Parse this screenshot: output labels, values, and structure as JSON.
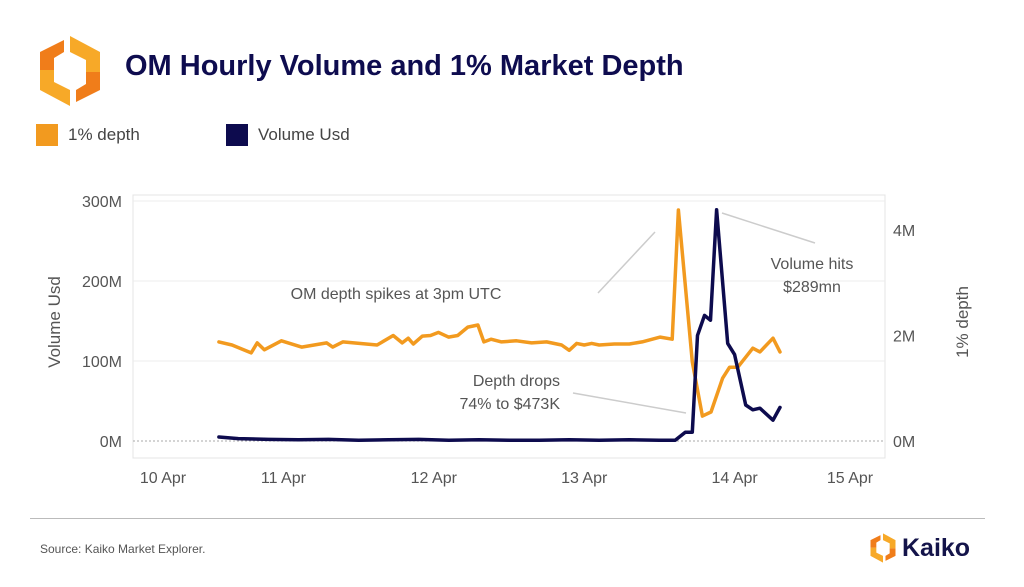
{
  "header": {
    "title": "OM Hourly Volume and 1% Market Depth"
  },
  "footer": {
    "source": "Source: Kaiko Market Explorer.",
    "brand": "Kaiko"
  },
  "colors": {
    "depth": "#f29a1f",
    "volume": "#0d0b4e",
    "title": "#0e0c4f",
    "logo_orange": "#f7a928",
    "logo_dark_orange": "#f07d1a"
  },
  "chart_data": {
    "type": "line",
    "title": "OM Hourly Volume and 1% Market Depth",
    "legend_position": "top-left",
    "grid": true,
    "x_axis": {
      "type": "date",
      "ticks": [
        "10 Apr",
        "11 Apr",
        "12 Apr",
        "13 Apr",
        "14 Apr",
        "15 Apr"
      ],
      "range_days_of_april": [
        10,
        15
      ]
    },
    "y_left": {
      "label": "Volume Usd",
      "ticks": [
        "0M",
        "100M",
        "200M",
        "300M"
      ],
      "tick_values": [
        0,
        100,
        200,
        300
      ],
      "range": [
        0,
        300
      ],
      "unit": "M USD"
    },
    "y_right": {
      "label": "1% depth",
      "ticks": [
        "0M",
        "2M",
        "4M"
      ],
      "tick_values": [
        0,
        2,
        4
      ],
      "range": [
        0,
        4.57
      ],
      "unit": "M USD"
    },
    "series": [
      {
        "name": "1% depth",
        "axis": "right",
        "color": "#f29a1f",
        "x": [
          10.571,
          10.658,
          10.786,
          10.826,
          10.873,
          10.987,
          11.121,
          11.288,
          11.328,
          11.395,
          11.623,
          11.73,
          11.79,
          11.83,
          11.864,
          11.924,
          11.978,
          12.031,
          12.098,
          12.159,
          12.226,
          12.293,
          12.333,
          12.38,
          12.45,
          12.55,
          12.65,
          12.75,
          12.85,
          12.9,
          12.95,
          13.0,
          13.05,
          13.1,
          13.2,
          13.3,
          13.385,
          13.505,
          13.585,
          13.626,
          13.719,
          13.786,
          13.843,
          13.92,
          13.967,
          14.021,
          14.121,
          14.168,
          14.255,
          14.302
        ],
        "y": [
          1.88,
          1.82,
          1.67,
          1.86,
          1.73,
          1.9,
          1.78,
          1.86,
          1.78,
          1.88,
          1.82,
          2.0,
          1.86,
          1.95,
          1.84,
          1.99,
          2.0,
          2.06,
          1.97,
          2.0,
          2.16,
          2.2,
          1.88,
          1.93,
          1.88,
          1.9,
          1.86,
          1.88,
          1.82,
          1.72,
          1.85,
          1.82,
          1.85,
          1.82,
          1.84,
          1.84,
          1.88,
          1.97,
          1.93,
          4.38,
          1.5,
          0.473,
          0.55,
          1.19,
          1.4,
          1.4,
          1.76,
          1.69,
          1.95,
          1.69
        ]
      },
      {
        "name": "Volume Usd",
        "axis": "left",
        "color": "#0d0b4e",
        "x": [
          10.571,
          10.7,
          10.9,
          11.1,
          11.3,
          11.5,
          11.7,
          11.9,
          12.1,
          12.3,
          12.5,
          12.7,
          12.9,
          13.1,
          13.3,
          13.5,
          13.605,
          13.672,
          13.719,
          13.753,
          13.8,
          13.84,
          13.88,
          13.954,
          14.0,
          14.074,
          14.121,
          14.168,
          14.255,
          14.302
        ],
        "y": [
          5,
          3,
          2,
          1.5,
          2,
          1,
          1.5,
          2,
          1,
          1.5,
          1,
          1,
          1.5,
          1,
          1.5,
          1,
          1,
          11,
          11,
          132,
          157,
          151,
          289,
          122,
          108,
          45,
          39,
          41,
          26,
          42
        ]
      }
    ],
    "annotations": [
      {
        "text": "OM depth spikes at 3pm UTC"
      },
      {
        "text_lines": [
          "Volume hits",
          "$289mn"
        ]
      },
      {
        "text_lines": [
          "Depth drops",
          "74% to $473K"
        ]
      }
    ]
  }
}
